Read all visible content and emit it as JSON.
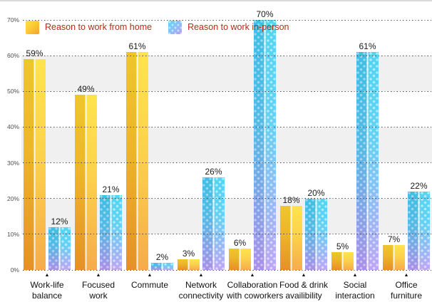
{
  "chart": {
    "legend_text_color": "#b52a18",
    "legend": [
      {
        "label": "Reason to work from home",
        "swatch": "yellow-orange-gradient"
      },
      {
        "label": "Reason to work in-person",
        "swatch": "cyan-purple-dotted-gradient"
      }
    ]
  },
  "chart_data": {
    "type": "bar",
    "title": "",
    "xlabel": "",
    "ylabel": "",
    "categories": [
      "Work-life balance",
      "Focused work",
      "Commute",
      "Network connectivity",
      "Collaboration with coworkers",
      "Food & drink availibility",
      "Social interaction",
      "Office furniture"
    ],
    "category_lines": [
      [
        "Work-life",
        "balance"
      ],
      [
        "Focused",
        "work"
      ],
      [
        "Commute"
      ],
      [
        "Network",
        "connectivity"
      ],
      [
        "Collaboration",
        "with coworkers"
      ],
      [
        "Food & drink",
        "availibility"
      ],
      [
        "Social",
        "interaction"
      ],
      [
        "Office",
        "furniture"
      ]
    ],
    "category_marker": "▲",
    "series": [
      {
        "name": "Reason to work from home",
        "values": [
          59,
          49,
          61,
          3,
          6,
          18,
          5,
          7
        ],
        "color_top": "#ffdf2e",
        "color_bottom": "#f49e2f",
        "pattern": "none"
      },
      {
        "name": "Reason to work in-person",
        "values": [
          12,
          21,
          2,
          26,
          70,
          20,
          61,
          22
        ],
        "color_top": "#3dd1f0",
        "color_bottom": "#b79cf4",
        "pattern": "white-dots"
      }
    ],
    "value_suffix": "%",
    "ylim": [
      0,
      70
    ],
    "yticks": [
      "70%",
      "60%",
      "50%",
      "40%",
      "30%",
      "20%",
      "10%",
      "0%"
    ],
    "grid": "dotted-horizontal",
    "band_colors": [
      "#ffffff",
      "#f0f0f0"
    ],
    "legend_position": "top-left"
  }
}
